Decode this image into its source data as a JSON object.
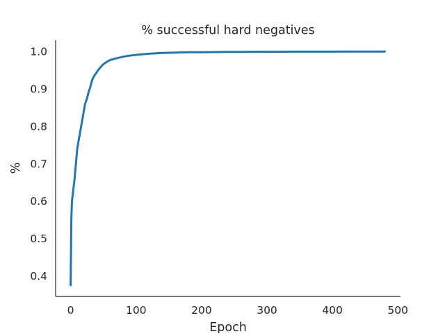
{
  "chart_data": {
    "type": "line",
    "title": "% successful hard negatives",
    "xlabel": "Epoch",
    "ylabel": "%",
    "xlim": [
      -23,
      504
    ],
    "ylim": [
      0.345,
      1.03
    ],
    "x_ticks": [
      0,
      100,
      200,
      300,
      400,
      500
    ],
    "y_ticks": [
      0.4,
      0.5,
      0.6,
      0.7,
      0.8,
      0.9,
      1.0
    ],
    "x_tick_labels": [
      "0",
      "100",
      "200",
      "300",
      "400",
      "500"
    ],
    "y_tick_labels": [
      "0.4",
      "0.5",
      "0.6",
      "0.7",
      "0.8",
      "0.9",
      "1.0"
    ],
    "grid": false,
    "spines": [
      "left",
      "bottom"
    ],
    "series": [
      {
        "color": "#1f77b4",
        "x": [
          0,
          1,
          2,
          4,
          6,
          8,
          10,
          12,
          15,
          18,
          20,
          22,
          25,
          28,
          30,
          33,
          36,
          40,
          45,
          50,
          55,
          60,
          70,
          80,
          90,
          100,
          120,
          140,
          160,
          180,
          200,
          220,
          240,
          260,
          280,
          300,
          320,
          340,
          360,
          380,
          400,
          420,
          440,
          460,
          480
        ],
        "y": [
          0.375,
          0.55,
          0.6,
          0.63,
          0.66,
          0.7,
          0.74,
          0.76,
          0.79,
          0.82,
          0.84,
          0.86,
          0.875,
          0.895,
          0.905,
          0.925,
          0.935,
          0.945,
          0.957,
          0.966,
          0.972,
          0.977,
          0.982,
          0.986,
          0.989,
          0.991,
          0.994,
          0.996,
          0.997,
          0.998,
          0.998,
          0.9985,
          0.999,
          0.999,
          0.9992,
          0.9993,
          0.9994,
          0.9995,
          0.9995,
          0.9996,
          0.9996,
          0.9997,
          0.9997,
          0.9997,
          0.9998
        ]
      }
    ]
  }
}
